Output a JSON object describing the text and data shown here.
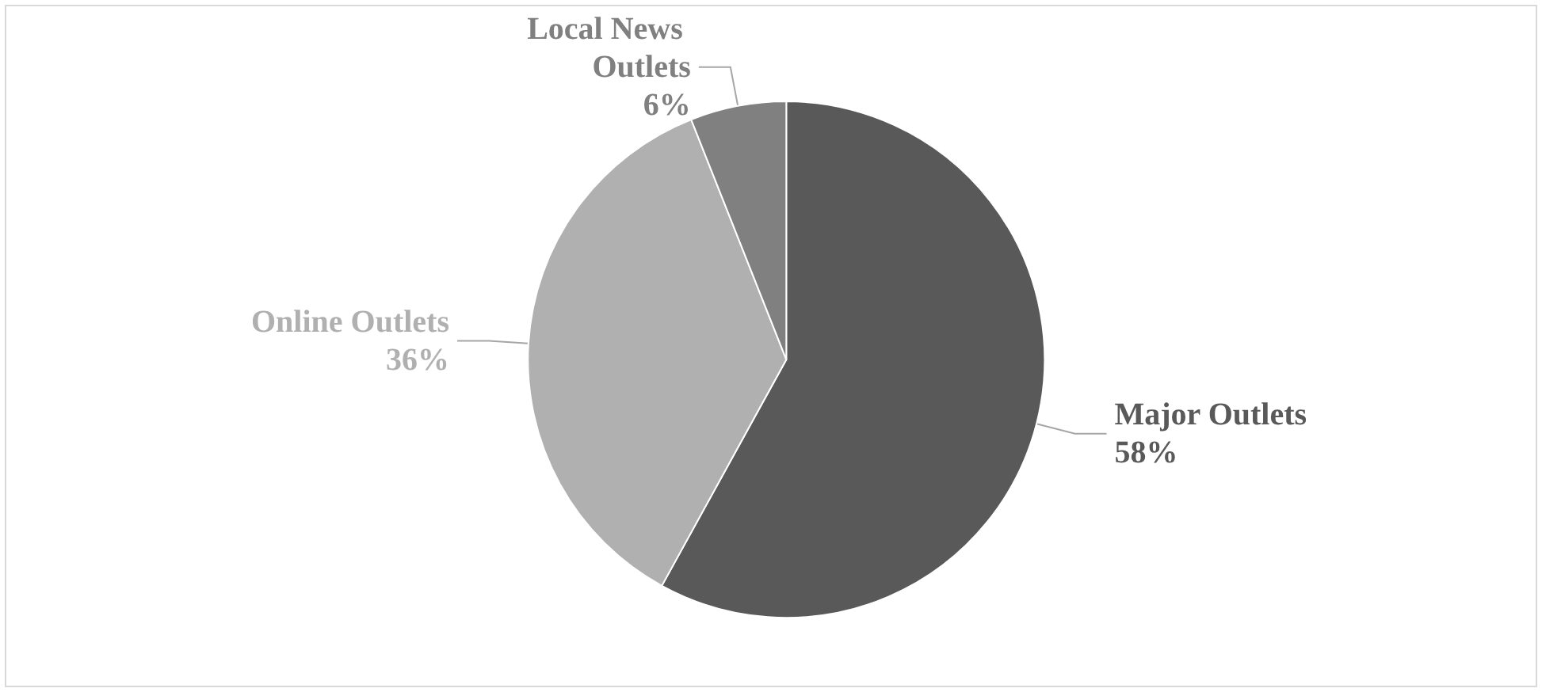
{
  "chart_data": {
    "type": "pie",
    "categories": [
      "Major Outlets",
      "Online Outlets",
      "Local News Outlets"
    ],
    "values": [
      58,
      36,
      6
    ],
    "colors": [
      "#595959",
      "#b0b0b0",
      "#808080"
    ],
    "value_labels": [
      "58%",
      "36%",
      "6%"
    ],
    "legend": false
  }
}
